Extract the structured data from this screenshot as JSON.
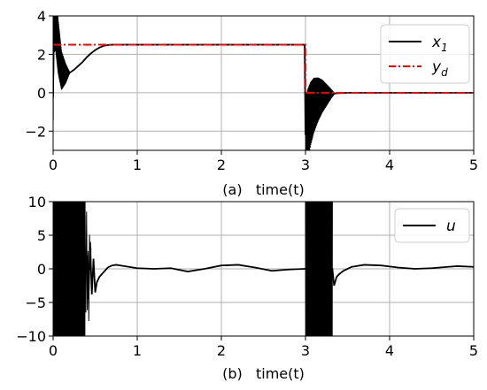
{
  "chart_data": [
    {
      "id": "a",
      "type": "line",
      "xlabel": "(a)   time(t)",
      "ylabel": "",
      "title": "",
      "xlim": [
        0,
        5
      ],
      "ylim": [
        -3,
        4
      ],
      "xticks": [
        0,
        1,
        2,
        3,
        4,
        5
      ],
      "yticks": [
        -2,
        0,
        2,
        4
      ],
      "ytick_labels": [
        "−2",
        "0",
        "2",
        "4"
      ],
      "grid": true,
      "legend_position": "top-right",
      "series": [
        {
          "name": "x",
          "subscript": "1",
          "color": "#000000",
          "style": "solid",
          "points": [
            [
              0,
              0
            ],
            [
              0.01,
              4.0
            ],
            [
              0.03,
              3.9
            ],
            [
              0.06,
              2.4
            ],
            [
              0.1,
              1.15
            ],
            [
              0.15,
              1.0
            ],
            [
              0.2,
              1.05
            ],
            [
              0.25,
              1.2
            ],
            [
              0.3,
              1.4
            ],
            [
              0.35,
              1.6
            ],
            [
              0.4,
              1.85
            ],
            [
              0.45,
              2.05
            ],
            [
              0.5,
              2.22
            ],
            [
              0.55,
              2.35
            ],
            [
              0.6,
              2.44
            ],
            [
              0.65,
              2.48
            ],
            [
              0.7,
              2.5
            ],
            [
              1.0,
              2.5
            ],
            [
              2.0,
              2.5
            ],
            [
              2.99,
              2.5
            ],
            [
              3.0,
              -2.2
            ],
            [
              3.03,
              -1.6
            ],
            [
              3.06,
              -1.1
            ],
            [
              3.1,
              -0.65
            ],
            [
              3.15,
              -0.35
            ],
            [
              3.2,
              -0.18
            ],
            [
              3.3,
              -0.06
            ],
            [
              3.4,
              -0.02
            ],
            [
              3.5,
              0
            ],
            [
              5.0,
              0
            ]
          ],
          "oscillations": [
            {
              "from": 0.0,
              "to": 0.2,
              "amp_start": 2.0,
              "amp_end": 0.0,
              "cycles": 70
            },
            {
              "from": 3.0,
              "to": 3.35,
              "amp_start": 2.0,
              "amp_end": 0.0,
              "cycles": 60
            }
          ]
        },
        {
          "name": "y",
          "subscript": "d",
          "color": "#ff0000",
          "style": "dashdot",
          "points": [
            [
              0,
              2.5
            ],
            [
              3.0,
              2.5
            ],
            [
              3.0,
              0
            ],
            [
              5.0,
              0
            ]
          ]
        }
      ]
    },
    {
      "id": "b",
      "type": "line",
      "xlabel": "(b)   time(t)",
      "ylabel": "",
      "title": "",
      "xlim": [
        0,
        5
      ],
      "ylim": [
        -10,
        10
      ],
      "xticks": [
        0,
        1,
        2,
        3,
        4,
        5
      ],
      "yticks": [
        -10,
        -5,
        0,
        5,
        10
      ],
      "ytick_labels": [
        "−10",
        "−5",
        "0",
        "5",
        "10"
      ],
      "grid": true,
      "legend_position": "top-right",
      "series": [
        {
          "name": "u",
          "subscript": "",
          "color": "#000000",
          "style": "solid",
          "points": [
            [
              0.38,
              0
            ],
            [
              0.4,
              2.0
            ],
            [
              0.42,
              -4.5
            ],
            [
              0.44,
              4.0
            ],
            [
              0.46,
              -3.8
            ],
            [
              0.48,
              1.5
            ],
            [
              0.5,
              -3.5
            ],
            [
              0.52,
              -2.0
            ],
            [
              0.55,
              -1.2
            ],
            [
              0.6,
              -0.5
            ],
            [
              0.65,
              0.2
            ],
            [
              0.7,
              0.5
            ],
            [
              0.75,
              0.6
            ],
            [
              0.85,
              0.4
            ],
            [
              1.0,
              0.1
            ],
            [
              1.2,
              0.0
            ],
            [
              1.4,
              0.1
            ],
            [
              1.6,
              -0.4
            ],
            [
              1.8,
              0.0
            ],
            [
              2.0,
              0.5
            ],
            [
              2.2,
              0.6
            ],
            [
              2.4,
              0.2
            ],
            [
              2.6,
              -0.3
            ],
            [
              2.8,
              -0.1
            ],
            [
              2.99,
              0.0
            ],
            [
              3.32,
              0.0
            ],
            [
              3.34,
              -2.5
            ],
            [
              3.37,
              -1.2
            ],
            [
              3.4,
              -0.8
            ],
            [
              3.45,
              -0.3
            ],
            [
              3.55,
              0.3
            ],
            [
              3.7,
              0.6
            ],
            [
              3.9,
              0.5
            ],
            [
              4.1,
              0.2
            ],
            [
              4.3,
              0.0
            ],
            [
              4.5,
              0.1
            ],
            [
              4.8,
              0.4
            ],
            [
              5.0,
              0.3
            ]
          ],
          "oscillations": [
            {
              "from": 0.0,
              "to": 0.38,
              "amp_start": 10,
              "amp_end": 10,
              "cycles": 80
            },
            {
              "from": 0.38,
              "to": 0.45,
              "amp_start": 8,
              "amp_end": 3,
              "cycles": 4
            },
            {
              "from": 3.0,
              "to": 3.32,
              "amp_start": 10,
              "amp_end": 10,
              "cycles": 70
            }
          ]
        }
      ]
    }
  ]
}
